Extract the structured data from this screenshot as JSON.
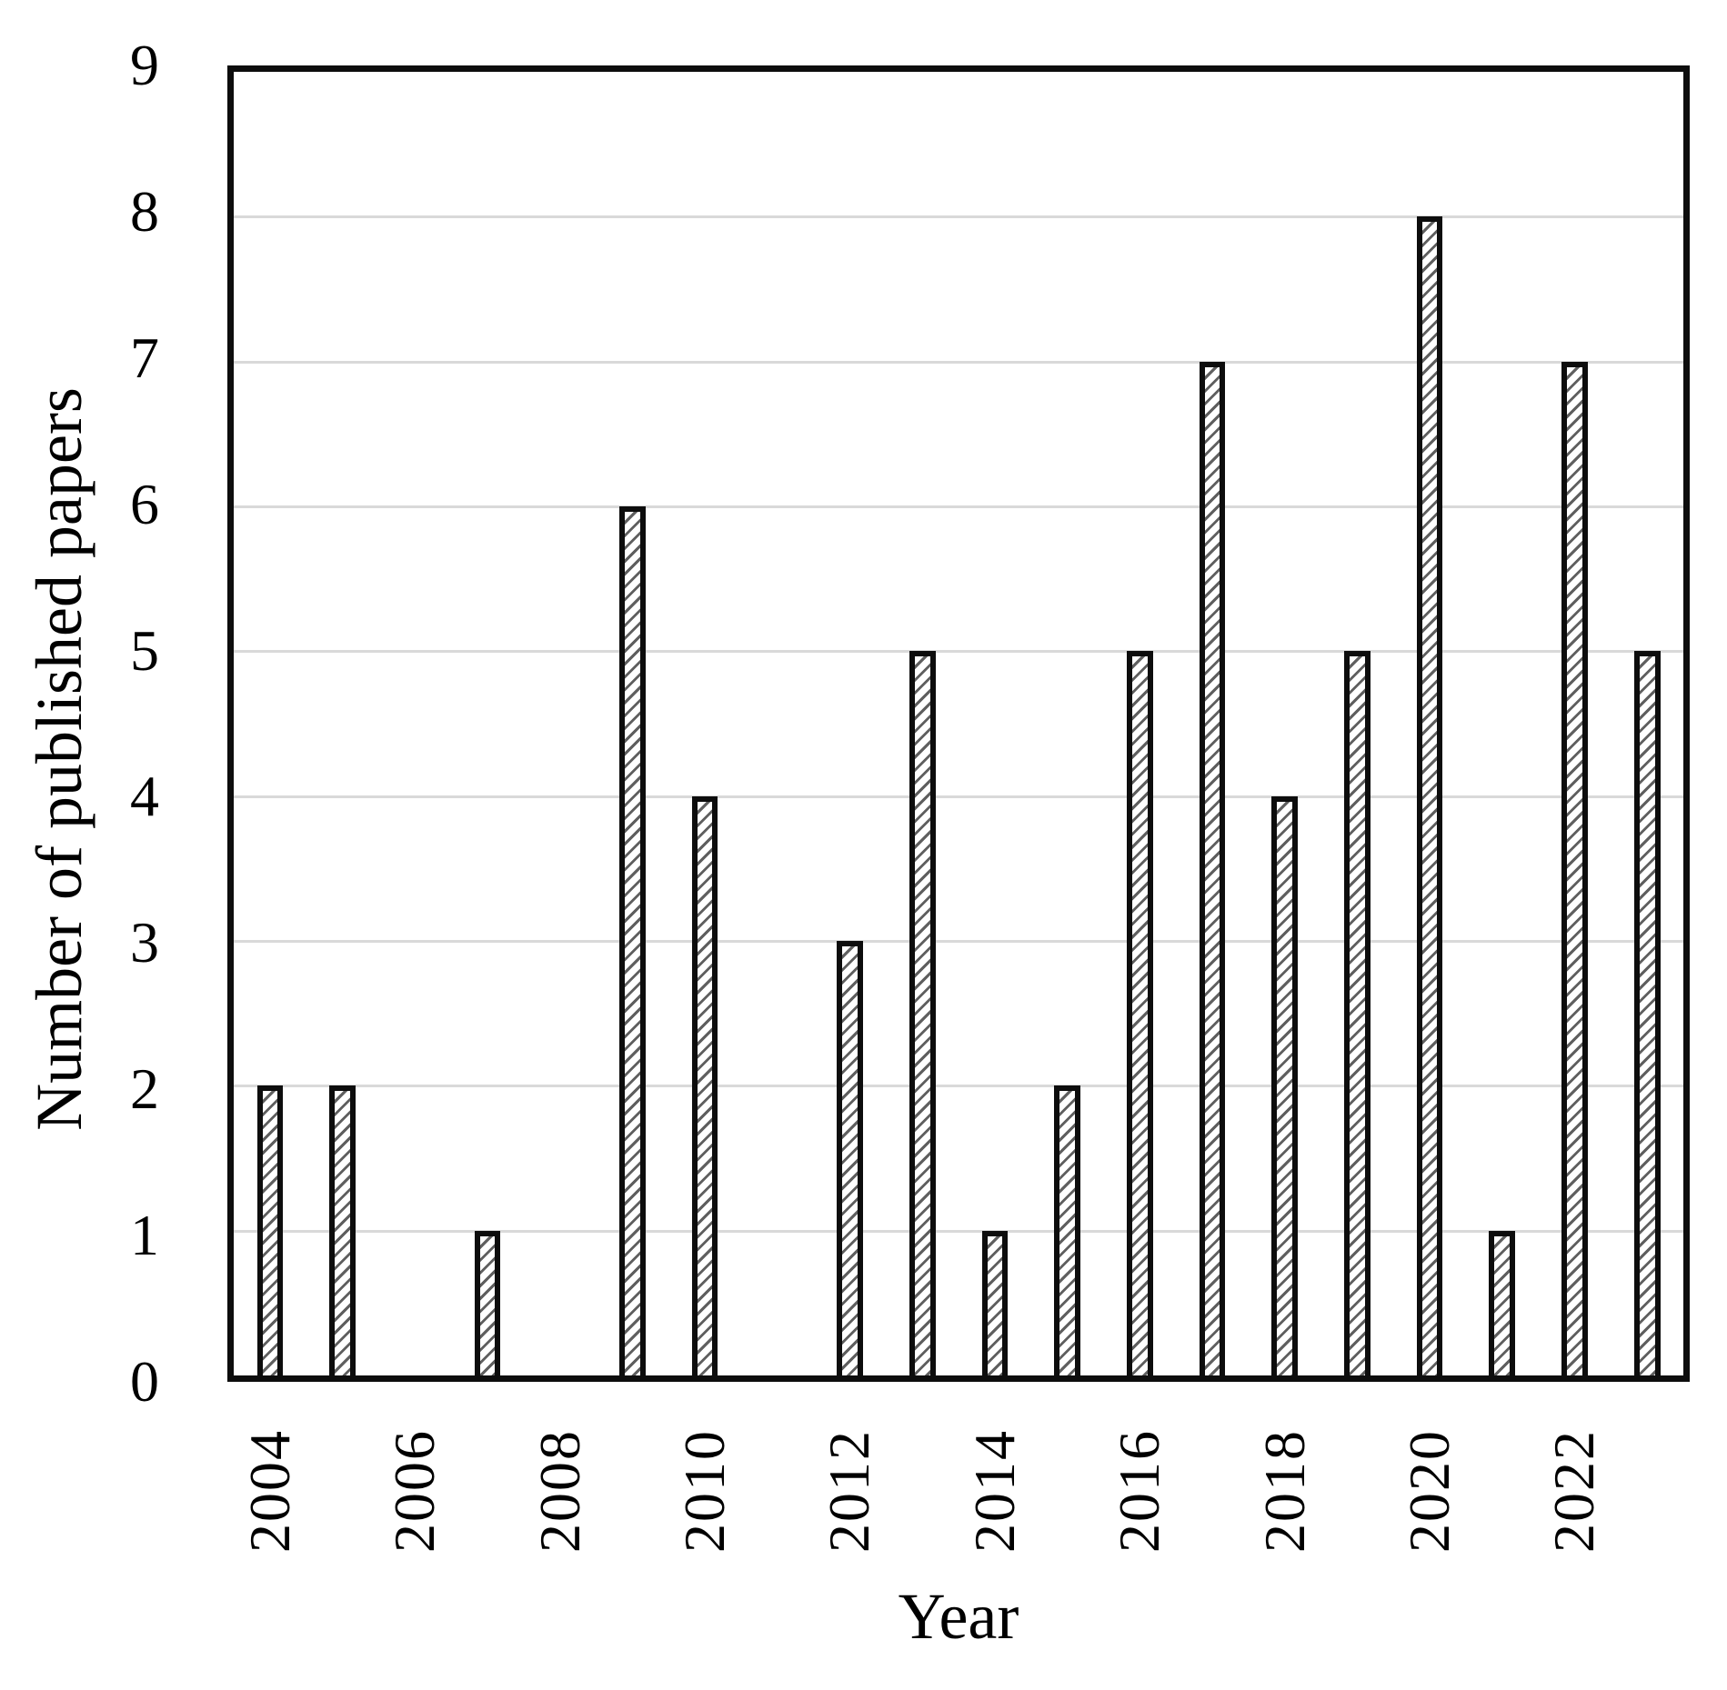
{
  "figure": {
    "background": "#ffffff",
    "frame_color": "#0d0d0d",
    "gridline_color": "#d9d9d9",
    "bar_fill": "#ffffff",
    "bar_hatch": "thin-diagonal-stripes",
    "bar_hatch_color": "#5f5f5f",
    "bar_border_color": "#0d0d0d"
  },
  "chart_data": {
    "type": "bar",
    "title": "",
    "xlabel": "Year",
    "ylabel": "Number of published papers",
    "categories": [
      2004,
      2005,
      2006,
      2007,
      2008,
      2009,
      2010,
      2011,
      2012,
      2013,
      2014,
      2015,
      2016,
      2017,
      2018,
      2019,
      2020,
      2021,
      2022,
      2023
    ],
    "values": [
      2,
      2,
      0,
      1,
      0,
      6,
      4,
      0,
      3,
      5,
      1,
      2,
      5,
      7,
      4,
      5,
      8,
      1,
      7,
      5
    ],
    "ylim": [
      0,
      9
    ],
    "yticks": [
      0,
      1,
      2,
      3,
      4,
      5,
      6,
      7,
      8,
      9
    ],
    "xtick_labels_shown": [
      "2004",
      "2006",
      "2008",
      "2010",
      "2012",
      "2014",
      "2016",
      "2018",
      "2020",
      "2022"
    ],
    "grid": "horizontal",
    "legend": "none",
    "bar_style": "white fill with diagonal hatch, black outline"
  }
}
